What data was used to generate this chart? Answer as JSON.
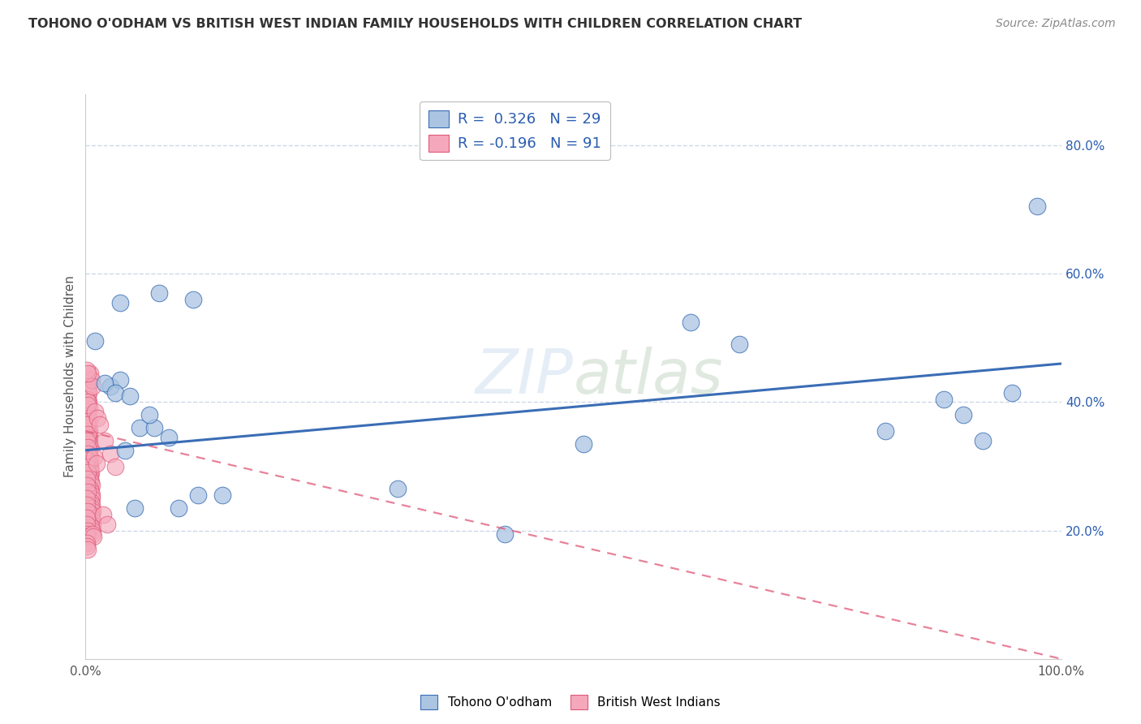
{
  "title": "TOHONO O'ODHAM VS BRITISH WEST INDIAN FAMILY HOUSEHOLDS WITH CHILDREN CORRELATION CHART",
  "source": "Source: ZipAtlas.com",
  "ylabel": "Family Households with Children",
  "legend_blue_r": "0.326",
  "legend_blue_n": "29",
  "legend_pink_r": "-0.196",
  "legend_pink_n": "91",
  "legend_label_blue": "Tohono O'odham",
  "legend_label_pink": "British West Indians",
  "blue_color": "#aac4e2",
  "pink_color": "#f5a8bb",
  "line_blue_color": "#3a6db5",
  "line_pink_color": "#e05878",
  "watermark_zip": "ZIP",
  "watermark_atlas": "atlas",
  "blue_dots": [
    [
      1.0,
      49.5
    ],
    [
      3.5,
      55.5
    ],
    [
      7.5,
      57.0
    ],
    [
      11.0,
      56.0
    ],
    [
      2.5,
      42.5
    ],
    [
      3.5,
      43.5
    ],
    [
      5.5,
      36.0
    ],
    [
      7.0,
      36.0
    ],
    [
      8.5,
      34.5
    ],
    [
      4.0,
      32.5
    ],
    [
      5.0,
      23.5
    ],
    [
      9.5,
      23.5
    ],
    [
      11.5,
      25.5
    ],
    [
      2.0,
      43.0
    ],
    [
      3.0,
      41.5
    ],
    [
      4.5,
      41.0
    ],
    [
      6.5,
      38.0
    ],
    [
      51.0,
      33.5
    ],
    [
      62.0,
      52.5
    ],
    [
      67.0,
      49.0
    ],
    [
      82.0,
      35.5
    ],
    [
      88.0,
      40.5
    ],
    [
      90.0,
      38.0
    ],
    [
      92.0,
      34.0
    ],
    [
      95.0,
      41.5
    ],
    [
      97.5,
      70.5
    ],
    [
      32.0,
      26.5
    ],
    [
      43.0,
      19.5
    ],
    [
      14.0,
      25.5
    ]
  ],
  "pink_dots": [
    [
      0.15,
      43.5
    ],
    [
      0.2,
      42.0
    ],
    [
      0.25,
      41.0
    ],
    [
      0.3,
      40.0
    ],
    [
      0.35,
      39.0
    ],
    [
      0.2,
      38.5
    ],
    [
      0.25,
      38.0
    ],
    [
      0.3,
      37.5
    ],
    [
      0.35,
      37.0
    ],
    [
      0.25,
      36.5
    ],
    [
      0.3,
      36.0
    ],
    [
      0.35,
      35.5
    ],
    [
      0.4,
      35.0
    ],
    [
      0.3,
      34.5
    ],
    [
      0.35,
      34.0
    ],
    [
      0.4,
      33.5
    ],
    [
      0.45,
      33.0
    ],
    [
      0.35,
      32.5
    ],
    [
      0.4,
      32.0
    ],
    [
      0.45,
      31.5
    ],
    [
      0.5,
      31.0
    ],
    [
      0.4,
      30.5
    ],
    [
      0.45,
      30.0
    ],
    [
      0.5,
      29.5
    ],
    [
      0.55,
      29.0
    ],
    [
      0.45,
      28.5
    ],
    [
      0.5,
      28.0
    ],
    [
      0.55,
      27.5
    ],
    [
      0.6,
      27.0
    ],
    [
      0.5,
      26.5
    ],
    [
      0.55,
      26.0
    ],
    [
      0.6,
      25.5
    ],
    [
      0.65,
      25.0
    ],
    [
      0.55,
      24.5
    ],
    [
      0.6,
      24.0
    ],
    [
      0.65,
      23.5
    ],
    [
      0.7,
      23.0
    ],
    [
      0.6,
      22.5
    ],
    [
      0.65,
      22.0
    ],
    [
      0.7,
      21.5
    ],
    [
      0.75,
      21.0
    ],
    [
      0.65,
      20.5
    ],
    [
      0.7,
      20.0
    ],
    [
      0.1,
      44.0
    ],
    [
      0.15,
      43.0
    ],
    [
      0.2,
      42.5
    ],
    [
      0.25,
      42.0
    ],
    [
      0.3,
      41.5
    ],
    [
      0.15,
      40.5
    ],
    [
      0.2,
      40.0
    ],
    [
      0.25,
      39.5
    ],
    [
      0.1,
      37.0
    ],
    [
      0.15,
      36.5
    ],
    [
      0.2,
      35.0
    ],
    [
      0.15,
      34.0
    ],
    [
      0.2,
      33.0
    ],
    [
      0.25,
      32.0
    ],
    [
      0.1,
      31.0
    ],
    [
      0.15,
      30.0
    ],
    [
      0.2,
      29.0
    ],
    [
      0.1,
      28.0
    ],
    [
      0.15,
      27.0
    ],
    [
      0.2,
      26.0
    ],
    [
      0.1,
      25.0
    ],
    [
      0.15,
      24.0
    ],
    [
      0.2,
      23.0
    ],
    [
      0.1,
      22.0
    ],
    [
      0.15,
      21.0
    ],
    [
      0.2,
      20.0
    ],
    [
      0.1,
      19.5
    ],
    [
      0.15,
      19.0
    ],
    [
      0.7,
      19.5
    ],
    [
      0.8,
      19.0
    ],
    [
      0.1,
      18.0
    ],
    [
      0.5,
      44.5
    ],
    [
      0.6,
      43.5
    ],
    [
      0.7,
      42.5
    ],
    [
      1.0,
      38.5
    ],
    [
      1.2,
      37.5
    ],
    [
      1.5,
      36.5
    ],
    [
      2.0,
      34.0
    ],
    [
      2.5,
      32.0
    ],
    [
      3.0,
      30.0
    ],
    [
      0.1,
      45.0
    ],
    [
      0.2,
      44.5
    ],
    [
      0.9,
      31.5
    ],
    [
      1.1,
      30.5
    ],
    [
      1.8,
      22.5
    ],
    [
      2.2,
      21.0
    ],
    [
      0.1,
      17.5
    ],
    [
      0.2,
      17.0
    ]
  ],
  "xlim": [
    0,
    100
  ],
  "ylim": [
    0,
    88
  ],
  "ytick_vals": [
    20,
    40,
    60,
    80
  ],
  "ytick_labels": [
    "20.0%",
    "40.0%",
    "60.0%",
    "80.0%"
  ],
  "xtick_vals": [
    0,
    100
  ],
  "xtick_labels": [
    "0.0%",
    "100.0%"
  ],
  "blue_line_x": [
    0,
    100
  ],
  "blue_line_y": [
    32.5,
    46.0
  ],
  "pink_line_x": [
    0,
    100
  ],
  "pink_line_y": [
    35.5,
    0.0
  ],
  "background_color": "#ffffff",
  "grid_color": "#c8d4e8",
  "title_color": "#333333",
  "source_color": "#888888",
  "legend_text_color": "#2a5db0",
  "axis_text_color": "#2a5db0"
}
